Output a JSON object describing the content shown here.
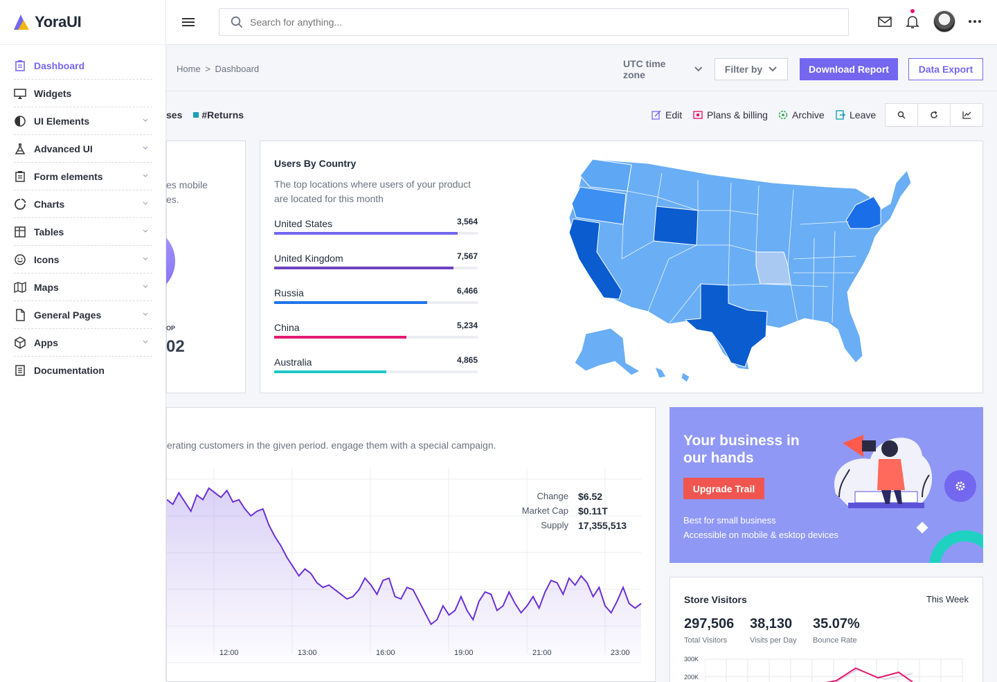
{
  "brand": {
    "name": "YoraUI"
  },
  "sidebar": {
    "items": [
      {
        "label": "Dashboard",
        "icon": "clipboard-icon",
        "active": true,
        "chevron": false
      },
      {
        "label": "Widgets",
        "icon": "monitor-icon",
        "chevron": false
      },
      {
        "label": "UI Elements",
        "icon": "contrast-icon",
        "chevron": true
      },
      {
        "label": "Advanced UI",
        "icon": "flask-icon",
        "chevron": true
      },
      {
        "label": "Form elements",
        "icon": "form-icon",
        "chevron": true
      },
      {
        "label": "Charts",
        "icon": "chart-ring-icon",
        "chevron": true
      },
      {
        "label": "Tables",
        "icon": "table-icon",
        "chevron": true
      },
      {
        "label": "Icons",
        "icon": "smiley-icon",
        "chevron": true
      },
      {
        "label": "Maps",
        "icon": "map-icon",
        "chevron": true
      },
      {
        "label": "General Pages",
        "icon": "file-icon",
        "chevron": true
      },
      {
        "label": "Apps",
        "icon": "cube-icon",
        "chevron": true
      },
      {
        "label": "Documentation",
        "icon": "document-icon",
        "chevron": false
      }
    ]
  },
  "topbar": {
    "search_placeholder": "Search for anything..."
  },
  "breadcrumb": {
    "home": "Home",
    "sep": ">",
    "current": "Dashboard"
  },
  "header": {
    "timezone": "UTC time zone",
    "filter": "Filter by",
    "download": "Download Report",
    "export": "Data Export"
  },
  "subbar": {
    "legend_fragment": "ses",
    "legend_returns": "#Returns",
    "actions": {
      "edit": "Edit",
      "plans": "Plans & billing",
      "archive": "Archive",
      "leave": "Leave"
    }
  },
  "left_card": {
    "text_line1": "es mobile",
    "text_line2": "es.",
    "small_label": "OP",
    "big_value": "02"
  },
  "users_by_country": {
    "title": "Users By Country",
    "subtitle": "The top locations where users of your product are located for this month",
    "countries": [
      {
        "name": "United States",
        "value": "3,564",
        "pct": 0.9,
        "color": "#7367f0"
      },
      {
        "name": "United Kingdom",
        "value": "7,567",
        "pct": 0.88,
        "color": "#6f42c1"
      },
      {
        "name": "Russia",
        "value": "6,466",
        "pct": 0.75,
        "color": "#1e74e8"
      },
      {
        "name": "China",
        "value": "5,234",
        "pct": 0.65,
        "color": "#e6196f"
      },
      {
        "name": "Australia",
        "value": "4,865",
        "pct": 0.55,
        "color": "#20c5c5"
      }
    ]
  },
  "activity_chart": {
    "subtitle": "erating customers in the given period. engage them with a special campaign.",
    "stats": [
      {
        "label": "Change",
        "value": "$6.52"
      },
      {
        "label": "Market Cap",
        "value": "$0.11T"
      },
      {
        "label": "Supply",
        "value": "17,355,513"
      }
    ],
    "x_labels": [
      "12:00",
      "13:00",
      "16:00",
      "19:00",
      "21:00",
      "23:00"
    ]
  },
  "promo": {
    "title": "Your business in our hands",
    "button": "Upgrade Trail",
    "line1": "Best for small business",
    "line2": "Accessible on mobile & esktop devices"
  },
  "store_visitors": {
    "title": "Store Visitors",
    "period": "This Week",
    "stats": [
      {
        "value": "297,506",
        "label": "Total Visitors"
      },
      {
        "value": "38,130",
        "label": "Visits per Day"
      },
      {
        "value": "35.07%",
        "label": "Bounce Rate"
      }
    ],
    "y_labels": [
      "300K",
      "200K"
    ]
  },
  "chart_data": {
    "type": "area",
    "x_tick_labels": [
      "12:00",
      "13:00",
      "16:00",
      "19:00",
      "21:00",
      "23:00"
    ],
    "series": [
      {
        "values": [
          62,
          58,
          68,
          60,
          52,
          66,
          62,
          72,
          68,
          64,
          70,
          60,
          62,
          54,
          48,
          52,
          54,
          40,
          30,
          22,
          12,
          4,
          -4,
          2,
          -2,
          -10,
          -14,
          -12,
          -16,
          -20,
          -24,
          -22,
          -16,
          -6,
          -12,
          -20,
          -8,
          -6,
          -22,
          -24,
          -14,
          -16,
          -26,
          -36,
          -46,
          -42,
          -30,
          -38,
          -34,
          -22,
          -34,
          -42,
          -26,
          -18,
          -20,
          -34,
          -30,
          -18,
          -28,
          -36,
          -30,
          -22,
          -32,
          -18,
          -8,
          -10,
          -20,
          -6,
          -12,
          -4,
          -10,
          -22,
          -14,
          -30,
          -36,
          -26,
          -14,
          -28,
          -32,
          -28
        ]
      }
    ]
  }
}
